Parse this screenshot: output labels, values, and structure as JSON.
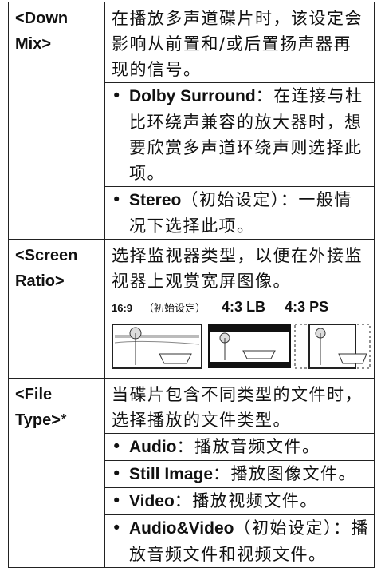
{
  "table": {
    "rows": [
      {
        "label": "<Down Mix>",
        "description": "在播放多声道碟片时，该设定会影响从前置和/或后置扬声器再现的信号。",
        "bullets": [
          {
            "term": "Dolby Surround",
            "text": "：在连接与杜比环绕声兼容的放大器时，想要欣赏多声道环绕声则选择此项。"
          },
          {
            "term": "Stereo",
            "text": "（初始设定）：一般情况下选择此项。"
          }
        ]
      },
      {
        "label": "<Screen Ratio>",
        "description": "选择监视器类型，以便在外接监视器上观赏宽屏图像。",
        "ratios": [
          {
            "label": "16:9",
            "note": "（初始设定）"
          },
          {
            "label": "4:3 LB"
          },
          {
            "label": "4:3 PS"
          }
        ]
      },
      {
        "label": "<File Type>",
        "marker": "*",
        "description": "当碟片包含不同类型的文件时，选择播放的文件类型。",
        "bullets": [
          {
            "term": "Audio",
            "text": "：播放音频文件。"
          },
          {
            "term": "Still Image",
            "text": "：播放图像文件。"
          },
          {
            "term": "Video",
            "text": "：播放视频文件。"
          },
          {
            "term": "Audio&Video",
            "text": "（初始设定）：播放音频文件和视频文件。"
          }
        ]
      }
    ]
  }
}
